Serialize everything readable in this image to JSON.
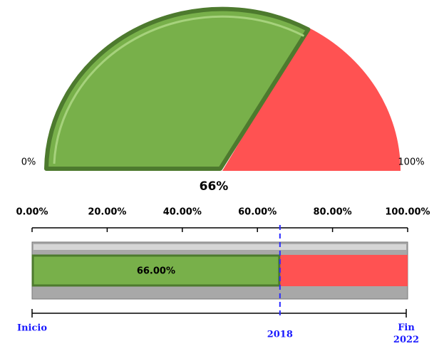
{
  "chart_data": [
    {
      "type": "gauge",
      "value": 66,
      "value_label": "66%",
      "ticks": [
        {
          "value": 0,
          "label": "0%"
        },
        {
          "value": 100,
          "label": "100%"
        }
      ],
      "fill_color": "#78b04a",
      "rest_color": "#ff5252"
    },
    {
      "type": "bullet",
      "value": 66,
      "value_label": "66.00%",
      "xlim": [
        0,
        100
      ],
      "xticks": [
        {
          "value": 0,
          "label": "0.00%"
        },
        {
          "value": 20,
          "label": "20.00%"
        },
        {
          "value": 40,
          "label": "40.00%"
        },
        {
          "value": 60,
          "label": "60.00%"
        },
        {
          "value": 80,
          "label": "80.00%"
        },
        {
          "value": 100,
          "label": "100.00%"
        }
      ],
      "marker": {
        "value": 66,
        "label": "2018"
      },
      "timeline": {
        "start": "Inicio",
        "end": "Fin 2022"
      },
      "fill_color": "#78b04a",
      "rest_color": "#ff5252",
      "marker_color": "#2a2aff"
    }
  ]
}
